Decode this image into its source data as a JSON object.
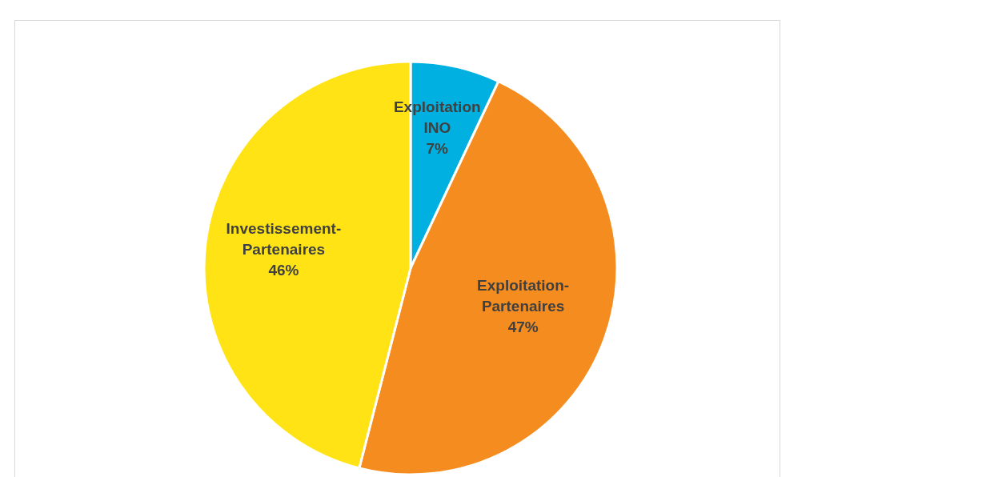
{
  "chart_data": {
    "type": "pie",
    "categories": [
      "Exploitation INO",
      "Exploitation-Partenaires",
      "Investissement-Partenaires"
    ],
    "values": [
      7,
      47,
      46
    ],
    "colors": [
      "#00b0e0",
      "#f58c1f",
      "#ffe315"
    ],
    "value_labels": [
      "7%",
      "47%",
      "46%"
    ],
    "legend": false
  }
}
